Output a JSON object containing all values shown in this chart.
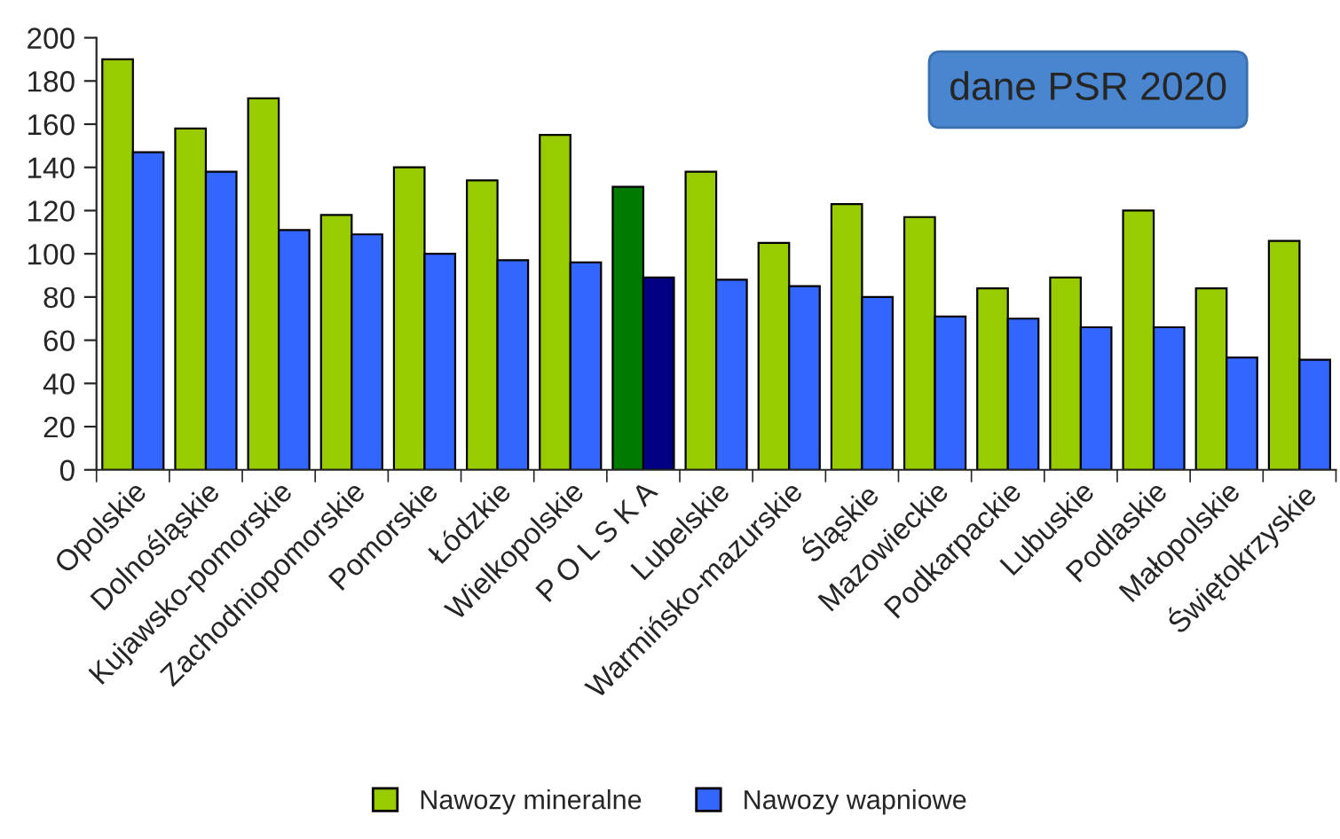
{
  "chart_data": {
    "type": "bar",
    "categories": [
      "Opolskie",
      "Dolnośląskie",
      "Kujawsko-pomorskie",
      "Zachodniopomorskie",
      "Pomorskie",
      "Łódzkie",
      "Wielkopolskie",
      "P O L S K A",
      "Lubelskie",
      "Warmińsko-mazurskie",
      "Śląskie",
      "Mazowieckie",
      "Podkarpackie",
      "Lubuskie",
      "Podlaskie",
      "Małopolskie",
      "Świętokrzyskie"
    ],
    "series": [
      {
        "name": "Nawozy mineralne",
        "color": "#99cc00",
        "colors": [
          "#99cc00",
          "#99cc00",
          "#99cc00",
          "#99cc00",
          "#99cc00",
          "#99cc00",
          "#99cc00",
          "#007a00",
          "#99cc00",
          "#99cc00",
          "#99cc00",
          "#99cc00",
          "#99cc00",
          "#99cc00",
          "#99cc00",
          "#99cc00",
          "#99cc00"
        ],
        "values": [
          190,
          158,
          172,
          118,
          140,
          134,
          155,
          131,
          138,
          105,
          123,
          117,
          84,
          89,
          120,
          84,
          106
        ]
      },
      {
        "name": "Nawozy wapniowe",
        "color": "#3366ff",
        "colors": [
          "#3366ff",
          "#3366ff",
          "#3366ff",
          "#3366ff",
          "#3366ff",
          "#3366ff",
          "#3366ff",
          "#000080",
          "#3366ff",
          "#3366ff",
          "#3366ff",
          "#3366ff",
          "#3366ff",
          "#3366ff",
          "#3366ff",
          "#3366ff",
          "#3366ff"
        ],
        "values": [
          147,
          138,
          111,
          109,
          100,
          97,
          96,
          89,
          88,
          85,
          80,
          71,
          70,
          66,
          66,
          52,
          51
        ]
      }
    ],
    "ylim": [
      0,
      200
    ],
    "yticks": [
      0,
      20,
      40,
      60,
      80,
      100,
      120,
      140,
      160,
      180,
      200
    ],
    "grid": false,
    "legend": "bottom",
    "annotations": [
      "dane PSR 2020"
    ]
  }
}
